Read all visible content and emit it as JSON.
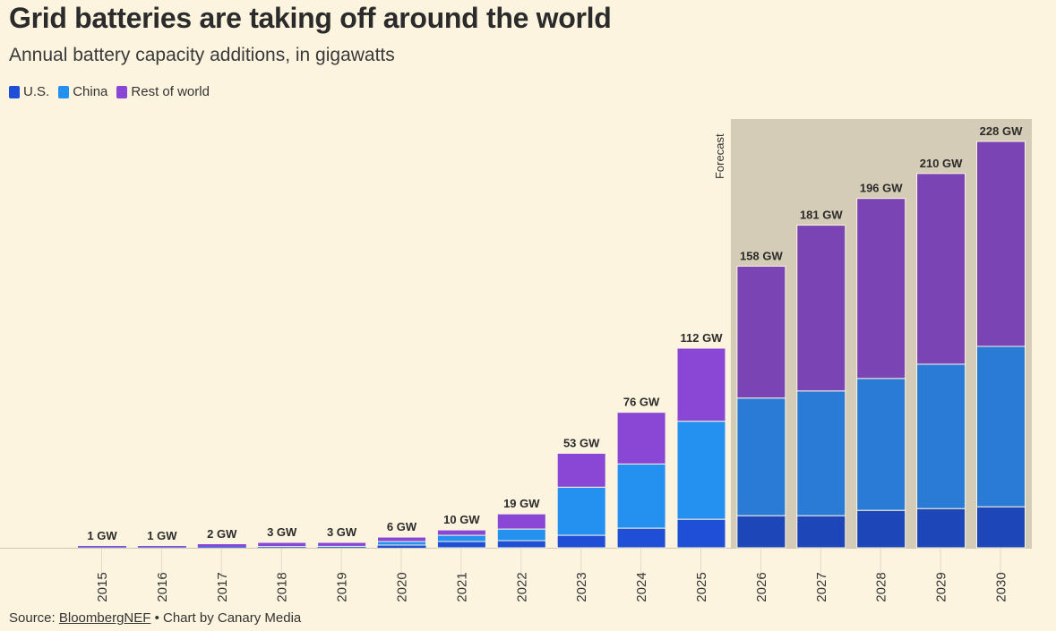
{
  "title": "Grid batteries are taking off around the world",
  "subtitle": "Annual battery capacity additions, in gigawatts",
  "legend": [
    {
      "label": "U.S.",
      "color": "#1f4fd6"
    },
    {
      "label": "China",
      "color": "#2491f0"
    },
    {
      "label": "Rest of world",
      "color": "#8a47d6"
    }
  ],
  "forecast_label": "Forecast",
  "source": {
    "prefix": "Source: ",
    "link_text": "BloombergNEF",
    "suffix": " • Chart by Canary Media"
  },
  "chart_data": {
    "type": "bar",
    "stacked": true,
    "categories": [
      "2015",
      "2016",
      "2017",
      "2018",
      "2019",
      "2020",
      "2021",
      "2022",
      "2023",
      "2024",
      "2025",
      "2026",
      "2027",
      "2028",
      "2029",
      "2030"
    ],
    "series": [
      {
        "name": "U.S.",
        "values": [
          0.1,
          0.1,
          0.2,
          0.3,
          0.3,
          1.5,
          3.5,
          4,
          7,
          11,
          16,
          18,
          18,
          21,
          22,
          23
        ]
      },
      {
        "name": "China",
        "values": [
          0.2,
          0.2,
          0.3,
          0.4,
          0.5,
          2,
          3.5,
          6.5,
          27,
          36,
          55,
          66,
          70,
          74,
          81,
          90
        ]
      },
      {
        "name": "Rest of world",
        "values": [
          0.7,
          0.7,
          1.5,
          2.3,
          2.2,
          2.5,
          3,
          8.5,
          19,
          29,
          41,
          74,
          93,
          101,
          107,
          115
        ]
      }
    ],
    "totals": [
      "1 GW",
      "1 GW",
      "2 GW",
      "3 GW",
      "3 GW",
      "6 GW",
      "10 GW",
      "19 GW",
      "53 GW",
      "76 GW",
      "112 GW",
      "158 GW",
      "181 GW",
      "196 GW",
      "210 GW",
      "228 GW"
    ],
    "forecast_start": "2026",
    "colors_actual": [
      "#1f4fd6",
      "#2491f0",
      "#8a47d6"
    ],
    "colors_forecast": [
      "#1d46b8",
      "#2a7bd6",
      "#7a44b4"
    ],
    "forecast_band_color": "#d4ccb7",
    "ylim": [
      0,
      240
    ],
    "grid": false,
    "legend_position": "top-left"
  }
}
